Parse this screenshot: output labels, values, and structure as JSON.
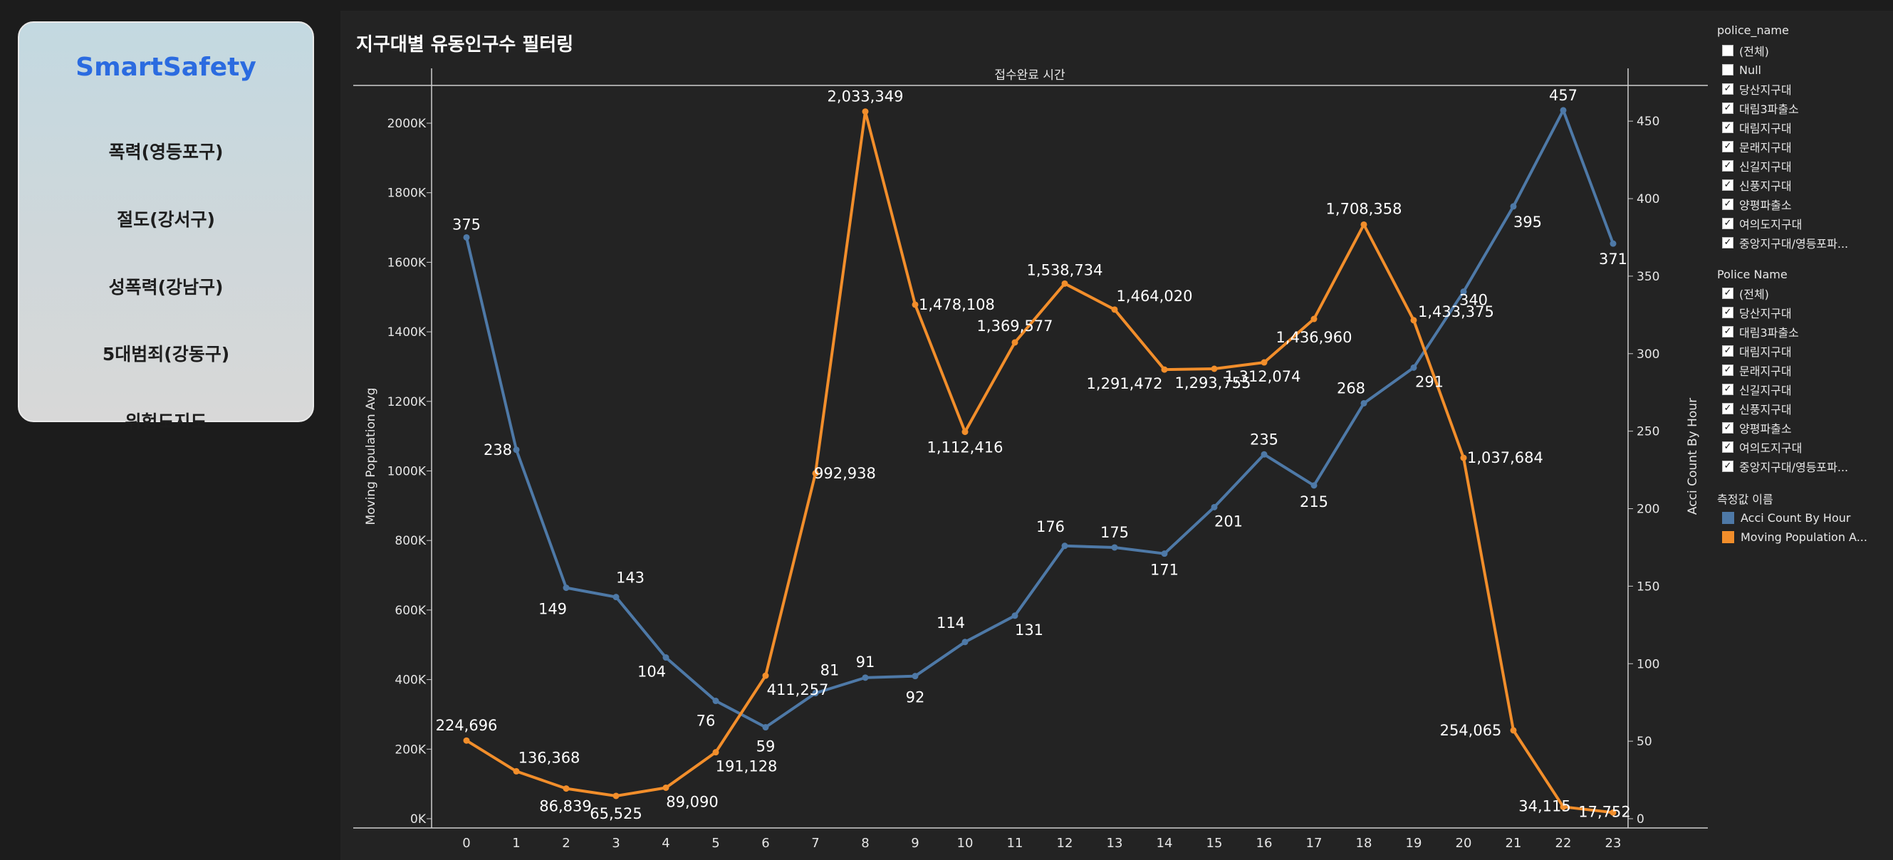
{
  "sidebar": {
    "brand": "SmartSafety",
    "items": [
      "폭력(영등포구)",
      "절도(강서구)",
      "성폭력(강남구)",
      "5대범죄(강동구)",
      "위험도지도"
    ]
  },
  "chart_data": {
    "type": "line",
    "title": "지구대별 유동인구수 필터링",
    "header": "접수완료 시간",
    "xlabel": "",
    "categories": [
      "0",
      "1",
      "2",
      "3",
      "4",
      "5",
      "6",
      "7",
      "8",
      "9",
      "10",
      "11",
      "12",
      "13",
      "14",
      "15",
      "16",
      "17",
      "18",
      "19",
      "20",
      "21",
      "22",
      "23"
    ],
    "y_left_label": "Moving Population Avg",
    "y_left_ticks": [
      "0K",
      "200K",
      "400K",
      "600K",
      "800K",
      "1000K",
      "1200K",
      "1400K",
      "1600K",
      "1800K",
      "2000K"
    ],
    "y_left_lim": [
      0,
      2100000
    ],
    "y_right_label": "Acci Count By Hour",
    "y_right_ticks": [
      "0",
      "50",
      "100",
      "150",
      "200",
      "250",
      "300",
      "350",
      "400",
      "450"
    ],
    "y_right_lim": [
      0,
      472
    ],
    "series": [
      {
        "name": "Acci Count By Hour",
        "axis": "right",
        "color": "#4e79a7",
        "values": [
          375,
          238,
          149,
          143,
          104,
          76,
          59,
          81,
          91,
          92,
          114,
          131,
          176,
          175,
          171,
          201,
          235,
          215,
          268,
          291,
          340,
          395,
          457,
          371
        ],
        "labels": [
          "375",
          "238",
          "149",
          "143",
          "104",
          "76",
          "59",
          "81",
          "91",
          "92",
          "114",
          "131",
          "176",
          "175",
          "171",
          "201",
          "235",
          "215",
          "268",
          "291",
          "340",
          "395",
          "457",
          "371"
        ]
      },
      {
        "name": "Moving Population Avg",
        "axis": "left",
        "color": "#f28e2b",
        "values": [
          224696,
          136368,
          86839,
          65525,
          89090,
          191128,
          411257,
          992938,
          2033349,
          1478108,
          1112416,
          1369577,
          1538734,
          1464020,
          1291472,
          1293755,
          1312074,
          1436960,
          1708358,
          1433375,
          1037684,
          254065,
          34115,
          17752
        ],
        "labels": [
          "224,696",
          "136,368",
          "86,839",
          "65,525",
          "89,090",
          "191,128",
          "411,257",
          "992,938",
          "2,033,349",
          "1,478,108",
          "1,112,416",
          "1,369,577",
          "1,538,734",
          "1,464,020",
          "1,291,472",
          "1,293,755",
          "1,312,074",
          "1,436,960",
          "1,708,358",
          "1,433,375",
          "1,037,684",
          "254,065",
          "34,115",
          "17,752"
        ]
      }
    ],
    "grid": false
  },
  "legends": {
    "police_name": {
      "title": "police_name",
      "items": [
        {
          "label": "(전체)",
          "checked": false
        },
        {
          "label": "Null",
          "checked": false
        },
        {
          "label": "당산지구대",
          "checked": true
        },
        {
          "label": "대림3파출소",
          "checked": true
        },
        {
          "label": "대림지구대",
          "checked": true
        },
        {
          "label": "문래지구대",
          "checked": true
        },
        {
          "label": "신길지구대",
          "checked": true
        },
        {
          "label": "신풍지구대",
          "checked": true
        },
        {
          "label": "양평파출소",
          "checked": true
        },
        {
          "label": "여의도지구대",
          "checked": true
        },
        {
          "label": "중앙지구대/영등포파...",
          "checked": true
        }
      ]
    },
    "police_name_2": {
      "title": "Police Name",
      "items": [
        {
          "label": "(전체)",
          "checked": true
        },
        {
          "label": "당산지구대",
          "checked": true
        },
        {
          "label": "대림3파출소",
          "checked": true
        },
        {
          "label": "대림지구대",
          "checked": true
        },
        {
          "label": "문래지구대",
          "checked": true
        },
        {
          "label": "신길지구대",
          "checked": true
        },
        {
          "label": "신풍지구대",
          "checked": true
        },
        {
          "label": "양평파출소",
          "checked": true
        },
        {
          "label": "여의도지구대",
          "checked": true
        },
        {
          "label": "중앙지구대/영등포파...",
          "checked": true
        }
      ]
    },
    "measures": {
      "title": "측정값 이름",
      "items": [
        {
          "label": "Acci Count By Hour",
          "color": "#4e79a7"
        },
        {
          "label": "Moving Population A...",
          "color": "#f28e2b"
        }
      ]
    }
  }
}
